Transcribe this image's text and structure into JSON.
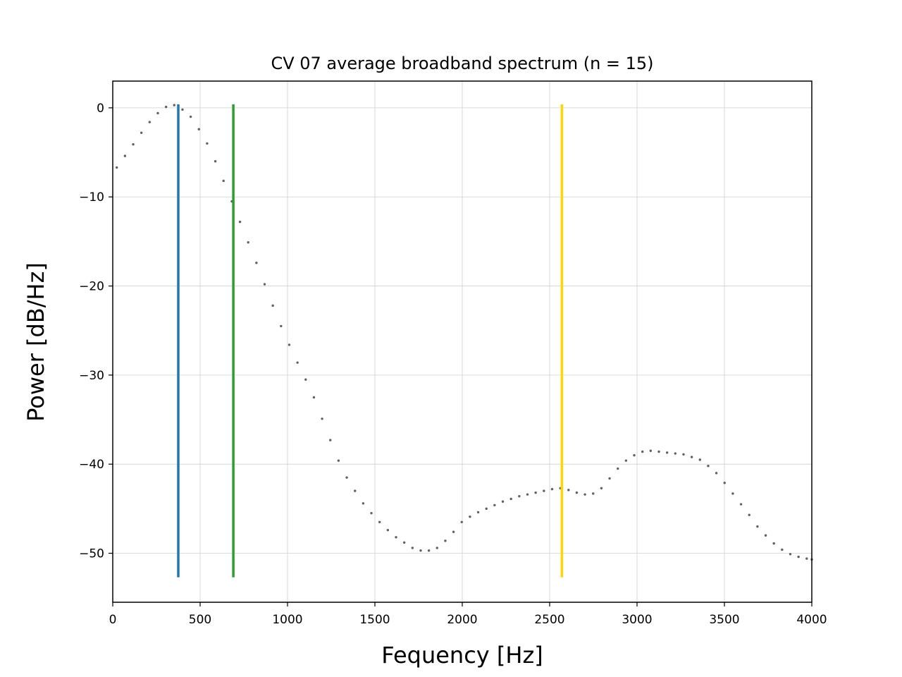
{
  "chart_data": {
    "type": "line",
    "title": "CV 07 average broadband spectrum (n = 15)",
    "xlabel": "Fequency [Hz]",
    "ylabel": "Power [dB/Hz]",
    "xlim": [
      0,
      4000
    ],
    "ylim": [
      -55.5,
      3
    ],
    "xticks": [
      0,
      500,
      1000,
      1500,
      2000,
      2500,
      3000,
      3500,
      4000
    ],
    "xtick_labels": [
      "0",
      "500",
      "1000",
      "1500",
      "2000",
      "2500",
      "3000",
      "3500",
      "4000"
    ],
    "yticks": [
      0,
      -10,
      -20,
      -30,
      -40,
      -50
    ],
    "ytick_labels": [
      "0",
      "−10",
      "−20",
      "−30",
      "−40",
      "−50"
    ],
    "grid": true,
    "series": [
      {
        "style": "dotted",
        "color": "#606060",
        "x": [
          23,
          70,
          117,
          164,
          211,
          258,
          305,
          352,
          399,
          446,
          493,
          540,
          587,
          634,
          681,
          728,
          775,
          822,
          869,
          916,
          963,
          1010,
          1057,
          1104,
          1151,
          1198,
          1245,
          1292,
          1339,
          1386,
          1433,
          1480,
          1527,
          1574,
          1621,
          1668,
          1715,
          1762,
          1809,
          1856,
          1903,
          1950,
          1997,
          2044,
          2091,
          2138,
          2185,
          2232,
          2279,
          2326,
          2373,
          2420,
          2467,
          2514,
          2561,
          2608,
          2655,
          2702,
          2749,
          2796,
          2843,
          2890,
          2937,
          2984,
          3031,
          3078,
          3125,
          3172,
          3219,
          3266,
          3313,
          3360,
          3407,
          3454,
          3501,
          3548,
          3595,
          3642,
          3689,
          3736,
          3783,
          3830,
          3877,
          3924,
          3971,
          4000
        ],
        "y": [
          -6.7,
          -5.4,
          -4.1,
          -2.8,
          -1.6,
          -0.6,
          0.1,
          0.3,
          -0.2,
          -1.0,
          -2.4,
          -4.0,
          -6.0,
          -8.2,
          -10.5,
          -12.8,
          -15.1,
          -17.4,
          -19.8,
          -22.2,
          -24.5,
          -26.6,
          -28.6,
          -30.5,
          -32.5,
          -34.9,
          -37.3,
          -39.6,
          -41.5,
          -43.0,
          -44.4,
          -45.5,
          -46.5,
          -47.4,
          -48.2,
          -48.8,
          -49.4,
          -49.7,
          -49.7,
          -49.4,
          -48.6,
          -47.6,
          -46.5,
          -45.9,
          -45.4,
          -45.0,
          -44.6,
          -44.2,
          -43.9,
          -43.6,
          -43.4,
          -43.2,
          -43.0,
          -42.8,
          -42.7,
          -42.9,
          -43.2,
          -43.4,
          -43.3,
          -42.7,
          -41.6,
          -40.5,
          -39.6,
          -39.0,
          -38.6,
          -38.5,
          -38.6,
          -38.7,
          -38.8,
          -38.9,
          -39.2,
          -39.5,
          -40.2,
          -41.0,
          -42.1,
          -43.3,
          -44.5,
          -45.7,
          -47.0,
          -48.0,
          -48.9,
          -49.6,
          -50.1,
          -50.4,
          -50.6,
          -50.7
        ]
      }
    ],
    "vlines": [
      {
        "x": 375,
        "ymin": -52.7,
        "ymax": 0.4,
        "color": "#1f77b4"
      },
      {
        "x": 690,
        "ymin": -52.7,
        "ymax": 0.4,
        "color": "#2ca02c"
      },
      {
        "x": 2570,
        "ymin": -52.7,
        "ymax": 0.4,
        "color": "#ffd700"
      }
    ]
  }
}
